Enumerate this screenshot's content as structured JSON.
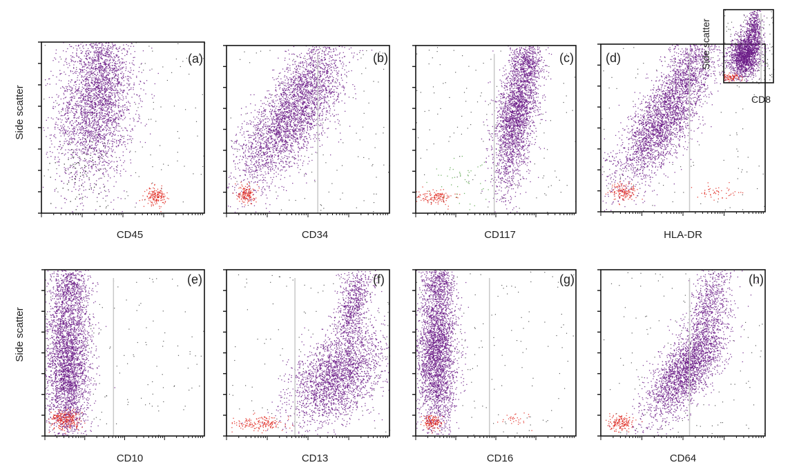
{
  "figure": {
    "row1_ylabel": "Side scatter",
    "row2_ylabel": "Side scatter",
    "inset": {
      "ylabel": "Side scatter",
      "xlabel": "CD8"
    }
  },
  "colors": {
    "main_population": "#6a1a86",
    "lymphocytes": "#e0261c",
    "other_black": "#111111",
    "other_green": "#5aa54a",
    "other_blue": "#3355bb",
    "gate_line": "#c8c8c8"
  },
  "chart_data": [
    {
      "type": "scatter",
      "tag": "(a)",
      "xlabel": "CD45",
      "ylabel": "Side scatter",
      "x_scale": "log",
      "gate_x": null
    },
    {
      "type": "scatter",
      "tag": "(b)",
      "xlabel": "CD34",
      "ylabel": "",
      "x_scale": "log",
      "gate_x": 0.56
    },
    {
      "type": "scatter",
      "tag": "(c)",
      "xlabel": "CD117",
      "ylabel": "",
      "x_scale": "log",
      "gate_x": 0.49
    },
    {
      "type": "scatter",
      "tag": "(d)",
      "xlabel": "HLA-DR",
      "ylabel": "",
      "x_scale": "log",
      "gate_x": 0.54
    },
    {
      "type": "scatter",
      "tag": "(e)",
      "xlabel": "CD10",
      "ylabel": "Side scatter",
      "x_scale": "log",
      "gate_x": 0.43
    },
    {
      "type": "scatter",
      "tag": "(f)",
      "xlabel": "CD13",
      "ylabel": "",
      "x_scale": "log",
      "gate_x": 0.42
    },
    {
      "type": "scatter",
      "tag": "(g)",
      "xlabel": "CD16",
      "ylabel": "",
      "x_scale": "log",
      "gate_x": 0.46
    },
    {
      "type": "scatter",
      "tag": "(h)",
      "xlabel": "CD64",
      "ylabel": "",
      "x_scale": "log",
      "gate_x": 0.54
    }
  ]
}
